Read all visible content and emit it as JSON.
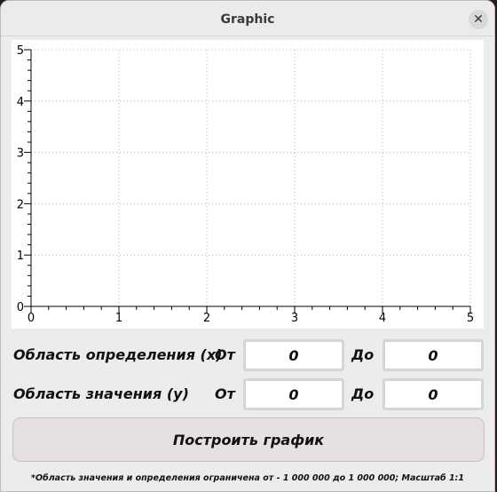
{
  "window": {
    "title": "Graphic",
    "close_symbol": "✕"
  },
  "chart_data": {
    "type": "line",
    "xlim": [
      0,
      5
    ],
    "ylim": [
      0,
      5
    ],
    "x_ticks": [
      "0",
      "1",
      "2",
      "3",
      "4",
      "5"
    ],
    "y_ticks": [
      "0",
      "1",
      "2",
      "3",
      "4",
      "5"
    ],
    "grid": true,
    "series": []
  },
  "domain_row": {
    "label": "Область определения (x)",
    "from_label": "От",
    "from_value": "0",
    "to_label": "До",
    "to_value": "0"
  },
  "range_row": {
    "label": "Область значения (y)",
    "from_label": "От",
    "from_value": "0",
    "to_label": "До",
    "to_value": "0"
  },
  "build_button": {
    "label": "Построить график"
  },
  "footnote": "*Область значения и определения ограничена от - 1 000 000 до 1 000 000; Масштаб 1:1"
}
